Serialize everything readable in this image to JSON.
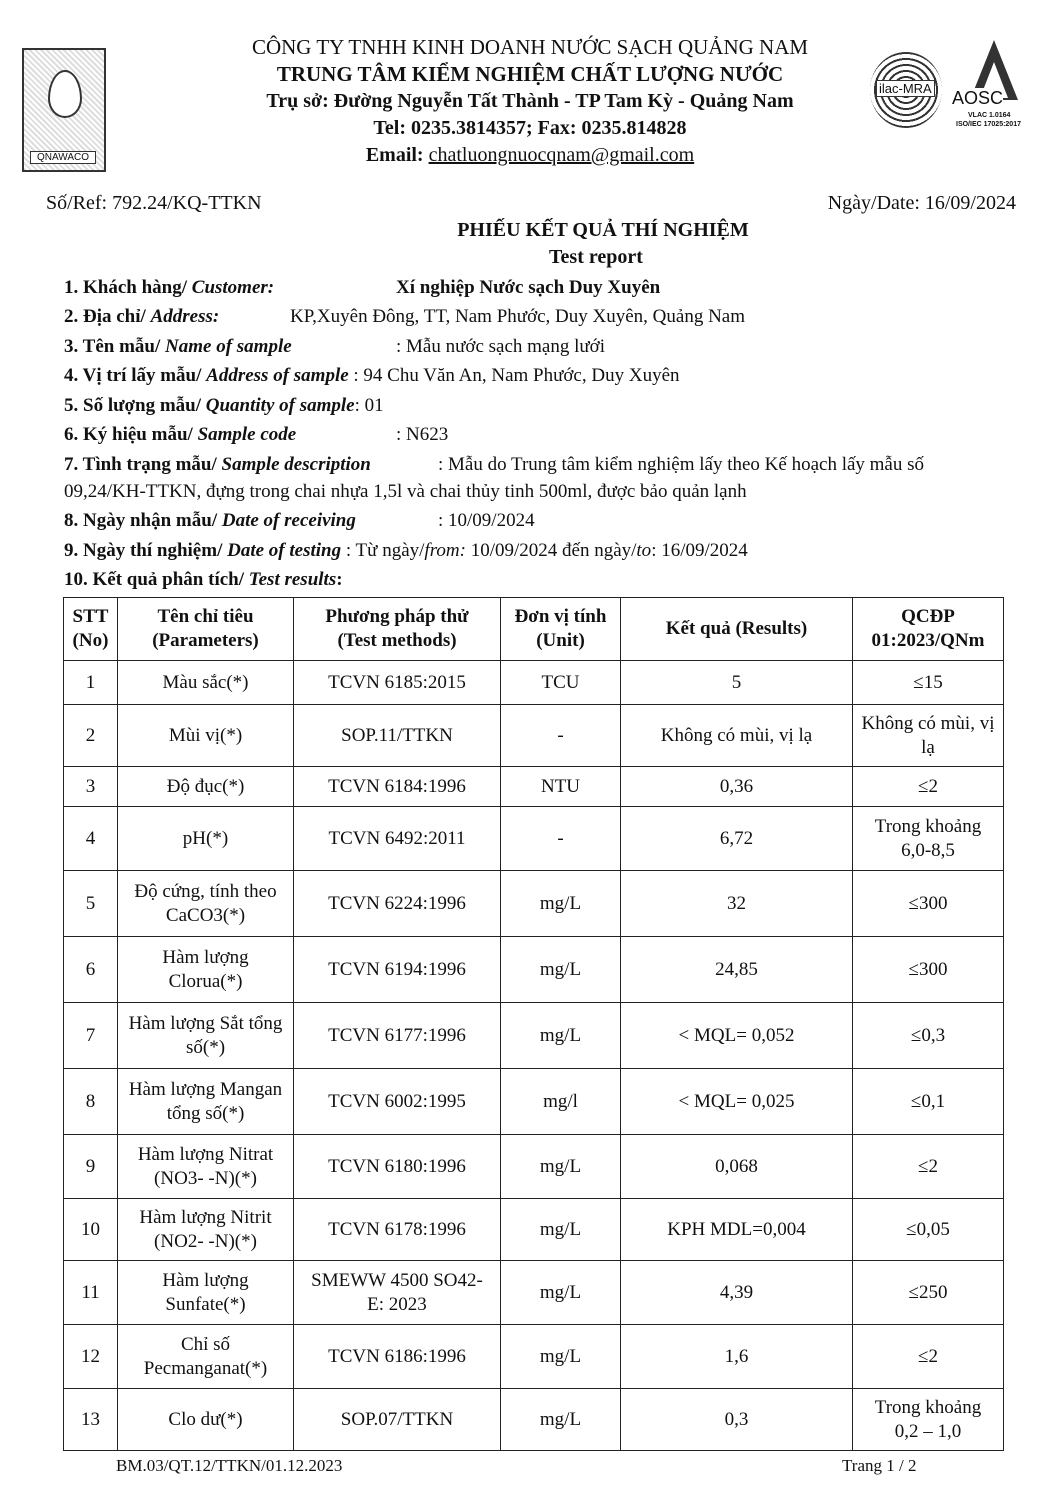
{
  "header": {
    "company": "CÔNG TY TNHH KINH DOANH NƯỚC SẠCH QUẢNG NAM",
    "center": "TRUNG TÂM KIỂM NGHIỆM CHẤT LƯỢNG NƯỚC",
    "address": "Trụ sở: Đường Nguyễn Tất Thành - TP Tam Kỳ -  Quảng Nam",
    "phone": "Tel: 0235.3814357; Fax: 0235.814828",
    "email_label": "Email:",
    "email": "chatluongnuocqnam@gmail.com",
    "logo_left": "QNAWACO",
    "logo_ilac": "ilac-MRA",
    "logo_aosc": "AOSC",
    "aosc_vlac": "VLAC 1.0164",
    "aosc_iso": "ISO/IEC 17025:2017"
  },
  "ref": "Số/Ref: 792.24/KQ-TTKN",
  "date": "Ngày/Date: 16/09/2024",
  "title": "PHIẾU KẾT QUẢ THÍ NGHIỆM",
  "subtitle": "Test report",
  "info": [
    {
      "label": "1. Khách hàng/ ",
      "label_en": "Customer:",
      "value": "Xí nghiệp Nước sạch Duy Xuyên"
    },
    {
      "label": "2. Địa chỉ/ ",
      "label_en": "Address:",
      "value": "KP,Xuyên Đông, TT, Nam Phước, Duy Xuyên, Quảng Nam"
    },
    {
      "label": "3. Tên mẫu/ ",
      "label_en": "Name of sample",
      "value": ": Mẫu nước sạch mạng lưới"
    },
    {
      "label": "4. Vị trí lấy mẫu/ ",
      "label_en": "Address of sample",
      "value": " : 94 Chu Văn An, Nam Phước, Duy Xuyên"
    },
    {
      "label": "5. Số lượng mẫu/ ",
      "label_en": "Quantity of sample",
      "value": ": 01"
    },
    {
      "label": "6. Ký hiệu mẫu/ ",
      "label_en": "Sample code",
      "value": ": N623"
    },
    {
      "label": "7. Tình trạng mẫu/ ",
      "label_en": "Sample description",
      "value": ": Mẫu do Trung tâm kiểm nghiệm lấy theo Kế hoạch lấy mẫu số",
      "value2": "09,24/KH-TTKN, đựng trong chai nhựa 1,5l và chai thủy tinh 500ml, được bảo quản lạnh"
    },
    {
      "label": "8. Ngày nhận mẫu/ ",
      "label_en": "Date of receiving",
      "value": ": 10/09/2024"
    },
    {
      "label": "9. Ngày thí nghiệm/ ",
      "label_en": "Date of testing",
      "value": " : Từ ngày/",
      "from_label": "from:",
      "from": " 10/09/2024  đến ngày/",
      "to_label": "to",
      "to": ": 16/09/2024"
    },
    {
      "label": "10. Kết quả phân tích/ ",
      "label_en": "Test results",
      "value": ":"
    }
  ],
  "table": {
    "headers": [
      [
        "STT",
        "(No)"
      ],
      [
        "Tên chỉ tiêu",
        "(Parameters)"
      ],
      [
        "Phương pháp thử",
        "(Test methods)"
      ],
      [
        "Đơn vị tính",
        "(Unit)"
      ],
      [
        "Kết quả (Results)",
        ""
      ],
      [
        "QCĐP",
        "01:2023/QNm"
      ]
    ],
    "rows": [
      [
        "1",
        "Màu sắc(*)",
        "TCVN 6185:2015",
        "TCU",
        "5",
        "≤15"
      ],
      [
        "2",
        "Mùi vị(*)",
        "SOP.11/TTKN",
        "-",
        "Không có mùi, vị lạ",
        "Không có mùi, vị lạ"
      ],
      [
        "3",
        "Độ đục(*)",
        "TCVN 6184:1996",
        "NTU",
        "0,36",
        "≤2"
      ],
      [
        "4",
        "pH(*)",
        "TCVN 6492:2011",
        "-",
        "6,72",
        "Trong khoảng 6,0-8,5"
      ],
      [
        "5",
        "Độ cứng, tính theo CaCO3(*)",
        "TCVN 6224:1996",
        "mg/L",
        "32",
        "≤300"
      ],
      [
        "6",
        "Hàm lượng Clorua(*)",
        "TCVN 6194:1996",
        "mg/L",
        "24,85",
        "≤300"
      ],
      [
        "7",
        "Hàm lượng Sắt tổng số(*)",
        "TCVN 6177:1996",
        "mg/L",
        "< MQL= 0,052",
        "≤0,3"
      ],
      [
        "8",
        "Hàm lượng Mangan tổng số(*)",
        "TCVN 6002:1995",
        "mg/l",
        "< MQL= 0,025",
        "≤0,1"
      ],
      [
        "9",
        "Hàm lượng Nitrat (NO3- -N)(*)",
        "TCVN 6180:1996",
        "mg/L",
        "0,068",
        "≤2"
      ],
      [
        "10",
        "Hàm lượng Nitrit (NO2- -N)(*)",
        "TCVN 6178:1996",
        "mg/L",
        "KPH MDL=0,004",
        "≤0,05"
      ],
      [
        "11",
        "Hàm lượng Sunfate(*)",
        "SMEWW 4500 SO42- E: 2023",
        "mg/L",
        "4,39",
        "≤250"
      ],
      [
        "12",
        "Chỉ số Pecmanganat(*)",
        "TCVN 6186:1996",
        "mg/L",
        "1,6",
        "≤2"
      ],
      [
        "13",
        "Clo dư(*)",
        "SOP.07/TTKN",
        "mg/L",
        "0,3",
        "Trong khoảng 0,2 – 1,0"
      ]
    ]
  },
  "footer": {
    "form_code": "BM.03/QT.12/TTKN/01.12.2023",
    "page": "Trang 1 / 2"
  }
}
